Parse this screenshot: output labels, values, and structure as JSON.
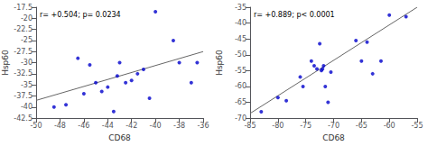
{
  "chart_data": [
    {
      "type": "scatter",
      "annotation": "r= +0.504; p= 0.0234",
      "xlabel": "CD68",
      "ylabel": "Hsp60",
      "xlim": [
        -50,
        -36
      ],
      "ylim": [
        -42.5,
        -17.5
      ],
      "xticks": [
        -50,
        -48,
        -46,
        -44,
        -42,
        -40,
        -38,
        -36
      ],
      "yticks": [
        -17.5,
        -20,
        -22.5,
        -25,
        -27.5,
        -30,
        -32.5,
        -35,
        -37.5,
        -40,
        -42.5
      ],
      "grid": false,
      "series": [
        {
          "type": "scatter",
          "color": "#0000cc",
          "x": [
            -48.5,
            -47.5,
            -46.5,
            -46.0,
            -45.5,
            -45.0,
            -44.5,
            -44.0,
            -43.5,
            -43.2,
            -43.0,
            -42.5,
            -42.0,
            -41.5,
            -41.0,
            -40.5,
            -40.0,
            -38.5,
            -38.0,
            -37.0,
            -36.5
          ],
          "values": [
            -40.0,
            -39.5,
            -29.0,
            -37.0,
            -30.5,
            -34.5,
            -36.5,
            -35.5,
            -41.0,
            -33.0,
            -30.0,
            -34.5,
            -34.0,
            -32.5,
            -31.5,
            -38.0,
            -18.5,
            -25.0,
            -30.0,
            -34.5,
            -30.0
          ]
        },
        {
          "type": "line",
          "color": "#666666",
          "x": [
            -50,
            -36
          ],
          "values": [
            -38.5,
            -27.5
          ]
        }
      ]
    },
    {
      "type": "scatter",
      "annotation": "r= +0.889; p< 0.0001",
      "xlabel": "CD68",
      "ylabel": "Hsp60",
      "xlim": [
        -85,
        -55
      ],
      "ylim": [
        -70,
        -35
      ],
      "xticks": [
        -85,
        -80,
        -75,
        -70,
        -65,
        -60,
        -55
      ],
      "yticks": [
        -35,
        -40,
        -45,
        -50,
        -55,
        -60,
        -65,
        -70
      ],
      "grid": false,
      "series": [
        {
          "type": "scatter",
          "color": "#0000cc",
          "x": [
            -83.0,
            -80.0,
            -78.5,
            -76.0,
            -75.5,
            -74.0,
            -73.5,
            -73.0,
            -72.5,
            -72.2,
            -72.0,
            -71.8,
            -71.5,
            -71.0,
            -70.5,
            -66.0,
            -65.0,
            -64.0,
            -63.0,
            -61.5,
            -60.0,
            -57.0
          ],
          "values": [
            -68.0,
            -63.5,
            -64.5,
            -57.0,
            -60.0,
            -52.0,
            -53.5,
            -54.5,
            -46.5,
            -55.0,
            -54.5,
            -53.5,
            -60.0,
            -65.0,
            -55.5,
            -45.5,
            -52.0,
            -46.0,
            -56.0,
            -52.0,
            -37.5,
            -38.0
          ]
        },
        {
          "type": "line",
          "color": "#666666",
          "x": [
            -85,
            -55
          ],
          "values": [
            -68.5,
            -35.0
          ]
        }
      ]
    }
  ]
}
